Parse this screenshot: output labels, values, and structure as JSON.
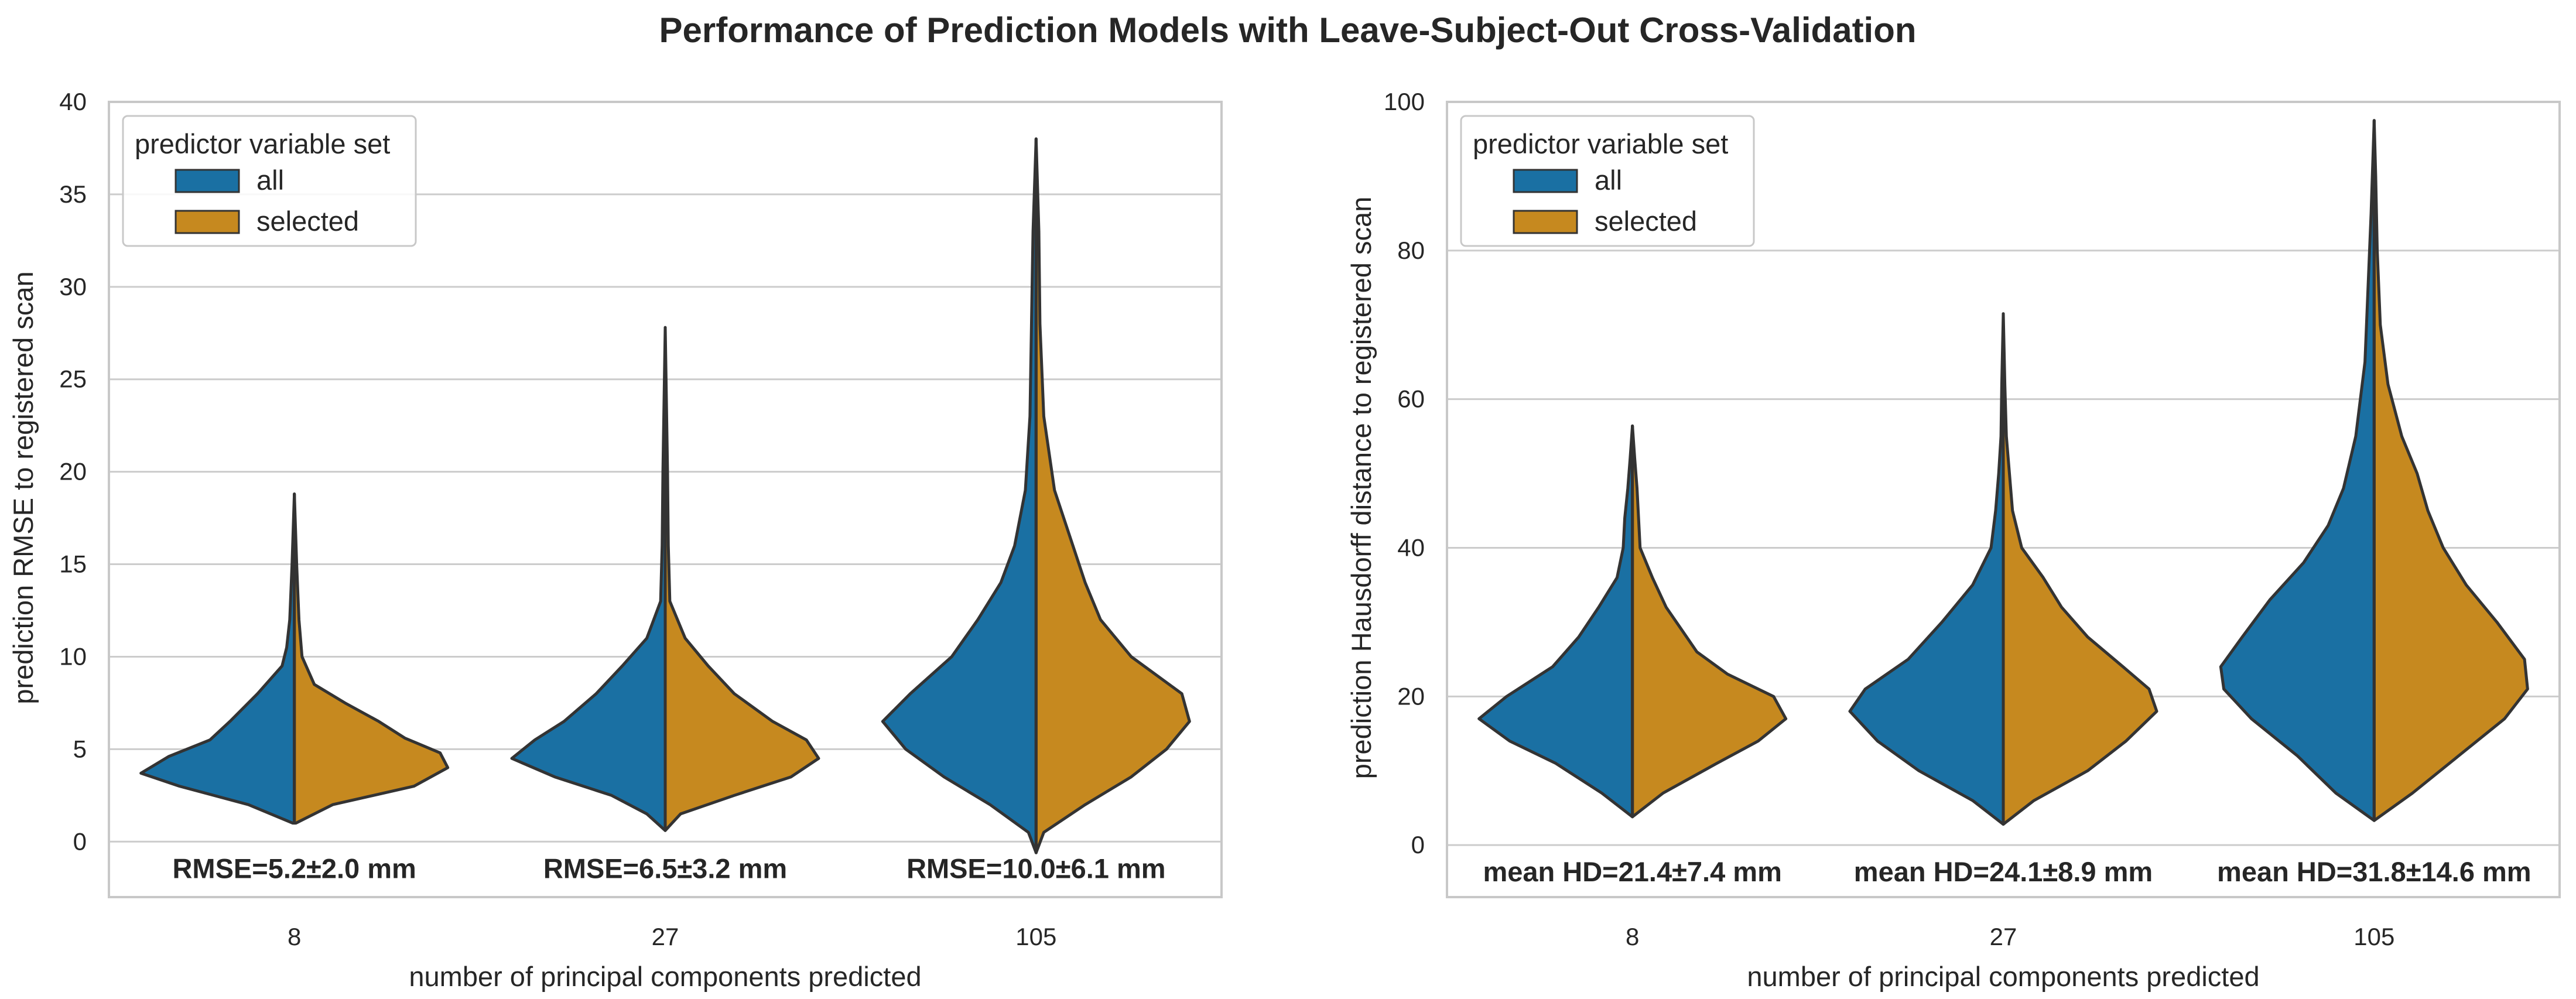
{
  "figure_title": "Performance of Prediction Models with Leave-Subject-Out Cross-Validation",
  "colors": {
    "all": "#1a70a3",
    "selected": "#c6891f",
    "outline": "#333333",
    "grid": "#cccccc",
    "frame": "#c8c8c8"
  },
  "chart_data": [
    {
      "type": "violin",
      "split": true,
      "xlabel": "number of principal components predicted",
      "ylabel": "prediction RMSE to registered scan",
      "categories": [
        "8",
        "27",
        "105"
      ],
      "ylim": [
        -3,
        40
      ],
      "yticks": [
        0,
        5,
        10,
        15,
        20,
        25,
        30,
        35,
        40
      ],
      "grid": true,
      "legend": {
        "title": "predictor variable set",
        "entries": [
          "all",
          "selected"
        ],
        "placement": "top-left"
      },
      "annotations": [
        "RMSE=5.2±2.0 mm",
        "RMSE=6.5±3.2 mm",
        "RMSE=10.0±6.1 mm"
      ],
      "series": [
        {
          "name": "all",
          "violins": [
            {
              "min": 1.0,
              "max": 18.8,
              "profile": [
                [
                  1.0,
                  0.01
                ],
                [
                  2.0,
                  0.3
                ],
                [
                  3.0,
                  0.75
                ],
                [
                  3.7,
                  1.0
                ],
                [
                  4.6,
                  0.82
                ],
                [
                  5.5,
                  0.55
                ],
                [
                  6.5,
                  0.42
                ],
                [
                  8,
                  0.24
                ],
                [
                  9.5,
                  0.08
                ],
                [
                  10.5,
                  0.05
                ],
                [
                  12,
                  0.03
                ],
                [
                  15,
                  0.015
                ],
                [
                  18.8,
                  0
                ]
              ]
            },
            {
              "min": 0.6,
              "max": 27.8,
              "profile": [
                [
                  0.6,
                  0
                ],
                [
                  1.5,
                  0.12
                ],
                [
                  2.5,
                  0.35
                ],
                [
                  3.5,
                  0.72
                ],
                [
                  4.5,
                  1.0
                ],
                [
                  5.5,
                  0.85
                ],
                [
                  6.5,
                  0.66
                ],
                [
                  8,
                  0.45
                ],
                [
                  9.5,
                  0.28
                ],
                [
                  11,
                  0.12
                ],
                [
                  13,
                  0.03
                ],
                [
                  16,
                  0.02
                ],
                [
                  20,
                  0.015
                ],
                [
                  27.8,
                  0
                ]
              ]
            },
            {
              "min": -0.6,
              "max": 38.0,
              "profile": [
                [
                  -0.6,
                  0
                ],
                [
                  0.5,
                  0.05
                ],
                [
                  2,
                  0.3
                ],
                [
                  3.5,
                  0.6
                ],
                [
                  5,
                  0.85
                ],
                [
                  6.5,
                  1.0
                ],
                [
                  8,
                  0.82
                ],
                [
                  10,
                  0.55
                ],
                [
                  12,
                  0.38
                ],
                [
                  14,
                  0.23
                ],
                [
                  16,
                  0.14
                ],
                [
                  19,
                  0.07
                ],
                [
                  23,
                  0.04
                ],
                [
                  28,
                  0.03
                ],
                [
                  33,
                  0.02
                ],
                [
                  38,
                  0
                ]
              ]
            }
          ]
        },
        {
          "name": "selected",
          "violins": [
            {
              "min": 1.0,
              "max": 18.8,
              "profile": [
                [
                  1.0,
                  0.01
                ],
                [
                  2.0,
                  0.25
                ],
                [
                  3.0,
                  0.78
                ],
                [
                  4.0,
                  1.0
                ],
                [
                  4.8,
                  0.95
                ],
                [
                  5.6,
                  0.72
                ],
                [
                  6.5,
                  0.55
                ],
                [
                  7.5,
                  0.33
                ],
                [
                  8.5,
                  0.13
                ],
                [
                  10,
                  0.05
                ],
                [
                  12,
                  0.03
                ],
                [
                  15,
                  0.015
                ],
                [
                  18.8,
                  0
                ]
              ]
            },
            {
              "min": 0.6,
              "max": 27.8,
              "profile": [
                [
                  0.6,
                  0
                ],
                [
                  1.5,
                  0.1
                ],
                [
                  2.5,
                  0.45
                ],
                [
                  3.5,
                  0.82
                ],
                [
                  4.5,
                  1.0
                ],
                [
                  5.5,
                  0.92
                ],
                [
                  6.5,
                  0.7
                ],
                [
                  8,
                  0.45
                ],
                [
                  9.5,
                  0.28
                ],
                [
                  11,
                  0.13
                ],
                [
                  13,
                  0.03
                ],
                [
                  16,
                  0.02
                ],
                [
                  20,
                  0.015
                ],
                [
                  27.8,
                  0
                ]
              ]
            },
            {
              "min": -0.6,
              "max": 38.0,
              "profile": [
                [
                  -0.6,
                  0
                ],
                [
                  0.5,
                  0.05
                ],
                [
                  2,
                  0.32
                ],
                [
                  3.5,
                  0.62
                ],
                [
                  5,
                  0.85
                ],
                [
                  6.5,
                  1.0
                ],
                [
                  8,
                  0.95
                ],
                [
                  10,
                  0.62
                ],
                [
                  12,
                  0.42
                ],
                [
                  14,
                  0.32
                ],
                [
                  16,
                  0.24
                ],
                [
                  19,
                  0.12
                ],
                [
                  23,
                  0.05
                ],
                [
                  28,
                  0.025
                ],
                [
                  33,
                  0.018
                ],
                [
                  38,
                  0
                ]
              ]
            }
          ]
        }
      ]
    },
    {
      "type": "violin",
      "split": true,
      "xlabel": "number of principal components predicted",
      "ylabel": "prediction Hausdorff distance to registered scan",
      "categories": [
        "8",
        "27",
        "105"
      ],
      "ylim": [
        -7,
        100
      ],
      "yticks": [
        0,
        20,
        40,
        60,
        80,
        100
      ],
      "grid": true,
      "legend": {
        "title": "predictor variable set",
        "entries": [
          "all",
          "selected"
        ],
        "placement": "top-left"
      },
      "annotations": [
        "mean HD=21.4±7.4 mm",
        "mean HD=24.1±8.9 mm",
        "mean HD=31.8±14.6 mm"
      ],
      "series": [
        {
          "name": "all",
          "violins": [
            {
              "min": 3.8,
              "max": 56.4,
              "profile": [
                [
                  3.8,
                  0
                ],
                [
                  7,
                  0.2
                ],
                [
                  11,
                  0.5
                ],
                [
                  14,
                  0.8
                ],
                [
                  17,
                  1.0
                ],
                [
                  20,
                  0.82
                ],
                [
                  24,
                  0.52
                ],
                [
                  28,
                  0.35
                ],
                [
                  32,
                  0.22
                ],
                [
                  36,
                  0.1
                ],
                [
                  40,
                  0.06
                ],
                [
                  44,
                  0.05
                ],
                [
                  48,
                  0.03
                ],
                [
                  52,
                  0.015
                ],
                [
                  56.4,
                  0
                ]
              ]
            },
            {
              "min": 2.8,
              "max": 71.5,
              "profile": [
                [
                  2.8,
                  0
                ],
                [
                  6,
                  0.2
                ],
                [
                  10,
                  0.55
                ],
                [
                  14,
                  0.82
                ],
                [
                  18,
                  1.0
                ],
                [
                  21,
                  0.9
                ],
                [
                  25,
                  0.62
                ],
                [
                  30,
                  0.4
                ],
                [
                  35,
                  0.2
                ],
                [
                  40,
                  0.08
                ],
                [
                  45,
                  0.05
                ],
                [
                  50,
                  0.03
                ],
                [
                  55,
                  0.015
                ],
                [
                  62,
                  0.01
                ],
                [
                  71.5,
                  0
                ]
              ]
            },
            {
              "min": 3.3,
              "max": 97.5,
              "profile": [
                [
                  3.3,
                  0
                ],
                [
                  7,
                  0.25
                ],
                [
                  12,
                  0.5
                ],
                [
                  17,
                  0.8
                ],
                [
                  21,
                  0.98
                ],
                [
                  24,
                  1.0
                ],
                [
                  28,
                  0.86
                ],
                [
                  33,
                  0.68
                ],
                [
                  38,
                  0.46
                ],
                [
                  43,
                  0.3
                ],
                [
                  48,
                  0.2
                ],
                [
                  55,
                  0.12
                ],
                [
                  65,
                  0.06
                ],
                [
                  75,
                  0.04
                ],
                [
                  85,
                  0.02
                ],
                [
                  97.5,
                  0
                ]
              ]
            }
          ]
        },
        {
          "name": "selected",
          "violins": [
            {
              "min": 3.8,
              "max": 56.4,
              "profile": [
                [
                  3.8,
                  0
                ],
                [
                  7,
                  0.2
                ],
                [
                  11,
                  0.55
                ],
                [
                  14,
                  0.82
                ],
                [
                  17,
                  1.0
                ],
                [
                  20,
                  0.92
                ],
                [
                  23,
                  0.62
                ],
                [
                  26,
                  0.42
                ],
                [
                  29,
                  0.32
                ],
                [
                  32,
                  0.22
                ],
                [
                  36,
                  0.13
                ],
                [
                  40,
                  0.05
                ],
                [
                  44,
                  0.04
                ],
                [
                  48,
                  0.03
                ],
                [
                  52,
                  0.015
                ],
                [
                  56.4,
                  0
                ]
              ]
            },
            {
              "min": 2.8,
              "max": 71.5,
              "profile": [
                [
                  2.8,
                  0
                ],
                [
                  6,
                  0.2
                ],
                [
                  10,
                  0.55
                ],
                [
                  14,
                  0.8
                ],
                [
                  18,
                  1.0
                ],
                [
                  21,
                  0.95
                ],
                [
                  24,
                  0.78
                ],
                [
                  28,
                  0.55
                ],
                [
                  32,
                  0.38
                ],
                [
                  36,
                  0.26
                ],
                [
                  40,
                  0.12
                ],
                [
                  45,
                  0.06
                ],
                [
                  50,
                  0.04
                ],
                [
                  55,
                  0.02
                ],
                [
                  62,
                  0.01
                ],
                [
                  71.5,
                  0
                ]
              ]
            },
            {
              "min": 3.3,
              "max": 97.5,
              "profile": [
                [
                  3.3,
                  0
                ],
                [
                  7,
                  0.25
                ],
                [
                  12,
                  0.55
                ],
                [
                  17,
                  0.85
                ],
                [
                  21,
                  1.0
                ],
                [
                  25,
                  0.98
                ],
                [
                  30,
                  0.8
                ],
                [
                  35,
                  0.6
                ],
                [
                  40,
                  0.45
                ],
                [
                  45,
                  0.35
                ],
                [
                  50,
                  0.28
                ],
                [
                  55,
                  0.18
                ],
                [
                  62,
                  0.09
                ],
                [
                  70,
                  0.04
                ],
                [
                  80,
                  0.02
                ],
                [
                  90,
                  0.01
                ],
                [
                  97.5,
                  0
                ]
              ]
            }
          ]
        }
      ]
    }
  ]
}
